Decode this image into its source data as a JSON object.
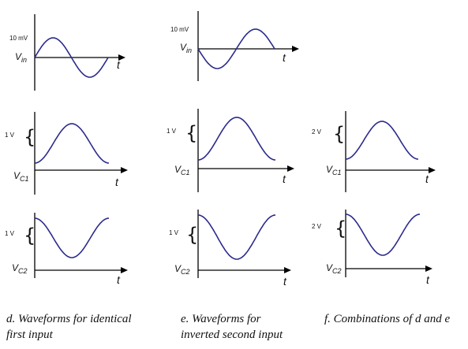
{
  "colors": {
    "wave": "#2b2b8c",
    "axis": "#000000"
  },
  "time_label": "t",
  "panels": [
    {
      "id": "vin-d",
      "signal": "V",
      "sub": "in",
      "scale": "10 mV",
      "brace": false,
      "shape": "sine"
    },
    {
      "id": "vin-e",
      "signal": "V",
      "sub": "in",
      "scale": "10 mV",
      "brace": false,
      "shape": "neg-sine"
    },
    {
      "id": "vc1-d",
      "signal": "V",
      "sub": "C1",
      "scale": "1 V",
      "brace": true,
      "shape": "neg-cos"
    },
    {
      "id": "vc1-e",
      "signal": "V",
      "sub": "C1",
      "scale": "1 V",
      "brace": true,
      "shape": "neg-cos"
    },
    {
      "id": "vc1-f",
      "signal": "V",
      "sub": "C1",
      "scale": "2 V",
      "brace": true,
      "shape": "neg-cos"
    },
    {
      "id": "vc2-d",
      "signal": "V",
      "sub": "C2",
      "scale": "1 V",
      "brace": true,
      "shape": "pos-cos"
    },
    {
      "id": "vc2-e",
      "signal": "V",
      "sub": "C2",
      "scale": "1 V",
      "brace": true,
      "shape": "pos-cos"
    },
    {
      "id": "vc2-f",
      "signal": "V",
      "sub": "C2",
      "scale": "2 V",
      "brace": true,
      "shape": "pos-cos"
    }
  ],
  "captions": {
    "d": [
      "d. Waveforms for identical",
      "first input"
    ],
    "e": [
      "e. Waveforms for",
      "inverted second input"
    ],
    "f": [
      "f. Combinations of d and e"
    ]
  }
}
